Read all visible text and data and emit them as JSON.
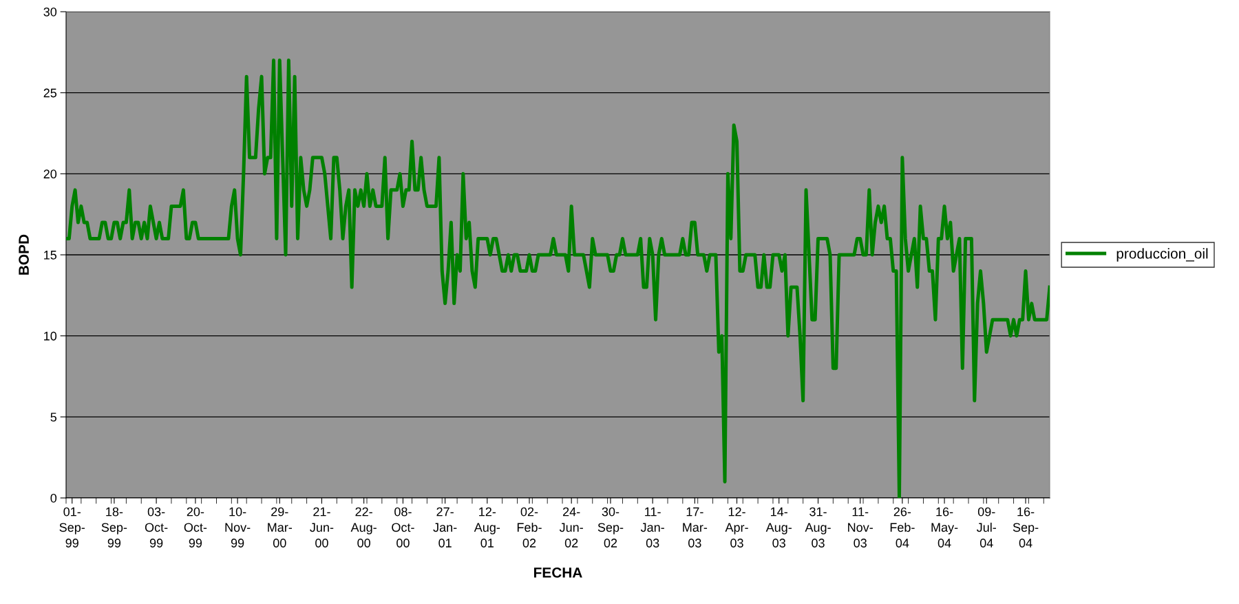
{
  "chart_data": {
    "type": "line",
    "xlabel": "FECHA",
    "ylabel": "BOPD",
    "ylim": [
      0,
      30
    ],
    "yticks": [
      0,
      5,
      10,
      15,
      20,
      25,
      30
    ],
    "grid": "y",
    "legend": "right",
    "marker": "none",
    "line_style": "solid",
    "categories": [
      null,
      null,
      "01-\nSep-\n99",
      null,
      null,
      null,
      null,
      null,
      null,
      null,
      null,
      null,
      null,
      null,
      null,
      null,
      "18-\nSep-\n99",
      null,
      null,
      null,
      null,
      null,
      null,
      null,
      null,
      null,
      null,
      null,
      null,
      null,
      "03-\nOct-\n99",
      null,
      null,
      null,
      null,
      null,
      null,
      null,
      null,
      null,
      null,
      null,
      null,
      "20-\nOct-\n99",
      null,
      null,
      null,
      null,
      null,
      null,
      null,
      null,
      null,
      null,
      null,
      null,
      null,
      "10-\nNov-\n99",
      null,
      null,
      null,
      null,
      null,
      null,
      null,
      null,
      null,
      null,
      null,
      null,
      null,
      "29-\nMar-\n00",
      null,
      null,
      null,
      null,
      null,
      null,
      null,
      null,
      null,
      null,
      null,
      null,
      null,
      "21-\nJun-\n00",
      null,
      null,
      null,
      null,
      null,
      null,
      null,
      null,
      null,
      null,
      null,
      null,
      null,
      "22-\nAug-\n00",
      null,
      null,
      null,
      null,
      null,
      null,
      null,
      null,
      null,
      null,
      null,
      null,
      "08-\nOct-\n00",
      null,
      null,
      null,
      null,
      null,
      null,
      null,
      null,
      null,
      null,
      null,
      null,
      null,
      "27-\nJan-\n01",
      null,
      null,
      null,
      null,
      null,
      null,
      null,
      null,
      null,
      null,
      null,
      null,
      null,
      "12-\nAug-\n01",
      null,
      null,
      null,
      null,
      null,
      null,
      null,
      null,
      null,
      null,
      null,
      null,
      null,
      "02-\nFeb-\n02",
      null,
      null,
      null,
      null,
      null,
      null,
      null,
      null,
      null,
      null,
      null,
      null,
      null,
      "24-\nJun-\n02",
      null,
      null,
      null,
      null,
      null,
      null,
      null,
      null,
      null,
      null,
      null,
      null,
      "30-\nSep-\n02",
      null,
      null,
      null,
      null,
      null,
      null,
      null,
      null,
      null,
      null,
      null,
      null,
      null,
      "11-\nJan-\n03",
      null,
      null,
      null,
      null,
      null,
      null,
      null,
      null,
      null,
      null,
      null,
      null,
      null,
      "17-\nMar-\n03",
      null,
      null,
      null,
      null,
      null,
      null,
      null,
      null,
      null,
      null,
      null,
      null,
      null,
      "12-\nApr-\n03",
      null,
      null,
      null,
      null,
      null,
      null,
      null,
      null,
      null,
      null,
      null,
      null,
      null,
      "14-\nAug-\n03",
      null,
      null,
      null,
      null,
      null,
      null,
      null,
      null,
      null,
      null,
      null,
      null,
      "31-\nAug-\n03",
      null,
      null,
      null,
      null,
      null,
      null,
      null,
      null,
      null,
      null,
      null,
      null,
      null,
      "11-\nNov-\n03",
      null,
      null,
      null,
      null,
      null,
      null,
      null,
      null,
      null,
      null,
      null,
      null,
      null,
      "26-\nFeb-\n04",
      null,
      null,
      null,
      null,
      null,
      null,
      null,
      null,
      null,
      null,
      null,
      null,
      null,
      "16-\nMay-\n04",
      null,
      null,
      null,
      null,
      null,
      null,
      null,
      null,
      null,
      null,
      null,
      null,
      null,
      "09-\nJul-\n04",
      null,
      null,
      null,
      null,
      null,
      null,
      null,
      null,
      null,
      null,
      null,
      null,
      "16-\nSep-\n04",
      null,
      null,
      null,
      null,
      null,
      null,
      null,
      null
    ],
    "series": [
      {
        "name": "produccion_oil",
        "color": "#008000",
        "values": [
          16,
          16,
          18,
          19,
          17,
          18,
          17,
          17,
          16,
          16,
          16,
          16,
          17,
          17,
          16,
          16,
          17,
          17,
          16,
          17,
          17,
          19,
          16,
          17,
          17,
          16,
          17,
          16,
          18,
          17,
          16,
          17,
          16,
          16,
          16,
          18,
          18,
          18,
          18,
          19,
          16,
          16,
          17,
          17,
          16,
          16,
          16,
          16,
          16,
          16,
          16,
          16,
          16,
          16,
          16,
          18,
          19,
          16,
          15,
          20,
          26,
          21,
          21,
          21,
          24,
          26,
          20,
          21,
          21,
          27,
          16,
          27,
          21,
          15,
          27,
          18,
          26,
          16,
          21,
          19,
          18,
          19,
          21,
          21,
          21,
          21,
          20,
          18,
          16,
          21,
          21,
          19,
          16,
          18,
          19,
          13,
          19,
          18,
          19,
          18,
          20,
          18,
          19,
          18,
          18,
          18,
          21,
          16,
          19,
          19,
          19,
          20,
          18,
          19,
          19,
          22,
          19,
          19,
          21,
          19,
          18,
          18,
          18,
          18,
          21,
          14,
          12,
          14,
          17,
          12,
          15,
          14,
          20,
          16,
          17,
          14,
          13,
          16,
          16,
          16,
          16,
          15,
          16,
          16,
          15,
          14,
          14,
          15,
          14,
          15,
          15,
          14,
          14,
          14,
          15,
          14,
          14,
          15,
          15,
          15,
          15,
          15,
          16,
          15,
          15,
          15,
          15,
          14,
          18,
          15,
          15,
          15,
          15,
          14,
          13,
          16,
          15,
          15,
          15,
          15,
          15,
          14,
          14,
          15,
          15,
          16,
          15,
          15,
          15,
          15,
          15,
          16,
          13,
          13,
          16,
          15,
          11,
          15,
          16,
          15,
          15,
          15,
          15,
          15,
          15,
          16,
          15,
          15,
          17,
          17,
          15,
          15,
          15,
          14,
          15,
          15,
          15,
          9,
          10,
          1,
          20,
          16,
          23,
          22,
          14,
          14,
          15,
          15,
          15,
          15,
          13,
          13,
          15,
          13,
          13,
          15,
          15,
          15,
          14,
          15,
          10,
          13,
          13,
          13,
          10,
          6,
          19,
          15,
          11,
          11,
          16,
          16,
          16,
          16,
          15,
          8,
          8,
          15,
          15,
          15,
          15,
          15,
          15,
          16,
          16,
          15,
          15,
          19,
          15,
          17,
          18,
          17,
          18,
          16,
          16,
          14,
          14,
          0,
          21,
          16,
          14,
          15,
          16,
          13,
          18,
          16,
          16,
          14,
          14,
          11,
          16,
          16,
          18,
          16,
          17,
          14,
          15,
          16,
          8,
          16,
          16,
          16,
          6,
          12,
          14,
          12,
          9,
          10,
          11,
          11,
          11,
          11,
          11,
          11,
          10,
          11,
          10,
          11,
          11,
          14,
          11,
          12,
          11,
          11,
          11,
          11,
          11,
          13
        ]
      }
    ]
  }
}
